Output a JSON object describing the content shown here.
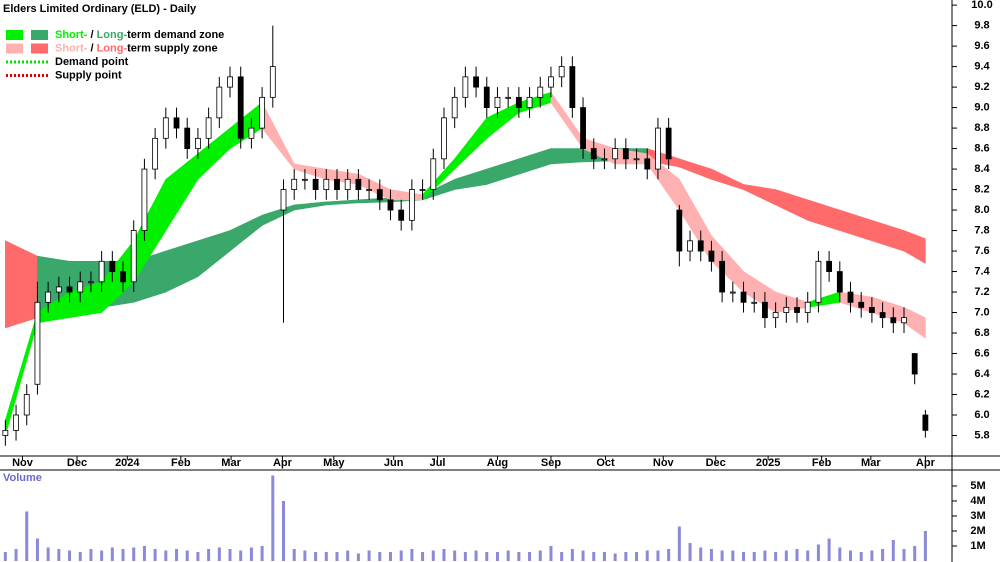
{
  "chart_data": {
    "type": "candlestick",
    "title": "Elders Limited Ordinary (ELD) - Daily",
    "xlim": [
      -0.5,
      88.3
    ],
    "xticks": [
      {
        "value": 1.6,
        "label": "Nov"
      },
      {
        "value": 6.7,
        "label": "Dec"
      },
      {
        "value": 11.4,
        "label": "2024"
      },
      {
        "value": 16.4,
        "label": "Feb"
      },
      {
        "value": 21.1,
        "label": "Mar"
      },
      {
        "value": 25.9,
        "label": "Apr"
      },
      {
        "value": 30.7,
        "label": "May"
      },
      {
        "value": 36.3,
        "label": "Jun"
      },
      {
        "value": 40.4,
        "label": "Jul"
      },
      {
        "value": 46.0,
        "label": "Aug"
      },
      {
        "value": 51.0,
        "label": "Sep"
      },
      {
        "value": 56.1,
        "label": "Oct"
      },
      {
        "value": 61.5,
        "label": "Nov"
      },
      {
        "value": 66.4,
        "label": "Dec"
      },
      {
        "value": 71.3,
        "label": "2025"
      },
      {
        "value": 76.3,
        "label": "Feb"
      },
      {
        "value": 80.9,
        "label": "Mar"
      },
      {
        "value": 86.0,
        "label": "Apr"
      }
    ],
    "ylim": [
      5.6,
      10.05
    ],
    "yticks": [
      5.8,
      {
        "value": 6,
        "label": "6.0"
      },
      6.2,
      6.4,
      6.6,
      6.8,
      {
        "value": 7,
        "label": "7.0"
      },
      7.2,
      7.4,
      7.6,
      7.8,
      {
        "value": 8,
        "label": "8.0"
      },
      8.2,
      8.4,
      8.6,
      8.8,
      {
        "value": 9,
        "label": "9.0"
      },
      9.2,
      9.4,
      9.6,
      9.8,
      {
        "value": 10,
        "label": "10.0"
      }
    ],
    "open": [
      5.8,
      5.85,
      6.0,
      6.3,
      7.1,
      7.2,
      7.25,
      7.2,
      7.3,
      7.3,
      7.5,
      7.4,
      7.3,
      7.8,
      8.4,
      8.7,
      8.9,
      8.8,
      8.6,
      8.7,
      8.9,
      9.2,
      9.3,
      8.7,
      8.8,
      9.1,
      8.0,
      8.2,
      8.3,
      8.3,
      8.2,
      8.3,
      8.2,
      8.3,
      8.2,
      8.2,
      8.1,
      8.0,
      7.9,
      8.2,
      8.2,
      8.5,
      8.9,
      9.1,
      9.3,
      9.2,
      9.0,
      9.1,
      9.1,
      9.0,
      9.1,
      9.2,
      9.3,
      9.4,
      9.0,
      8.6,
      8.5,
      8.5,
      8.6,
      8.5,
      8.5,
      8.4,
      8.8,
      8.0,
      7.6,
      7.7,
      7.6,
      7.5,
      7.2,
      7.2,
      7.1,
      7.1,
      6.95,
      7.0,
      7.05,
      7.0,
      7.1,
      7.5,
      7.4,
      7.2,
      7.1,
      7.05,
      7.0,
      6.95,
      6.9,
      6.6,
      6.0
    ],
    "high": [
      5.95,
      6.1,
      6.3,
      7.3,
      7.3,
      7.35,
      7.35,
      7.4,
      7.4,
      7.6,
      7.6,
      7.5,
      7.9,
      8.5,
      8.8,
      9.0,
      9.0,
      8.9,
      8.8,
      9.0,
      9.3,
      9.4,
      9.4,
      8.9,
      9.2,
      9.8,
      8.3,
      8.4,
      8.4,
      8.4,
      8.4,
      8.4,
      8.4,
      8.4,
      8.3,
      8.3,
      8.2,
      8.1,
      8.3,
      8.3,
      8.6,
      9.0,
      9.2,
      9.4,
      9.4,
      9.3,
      9.2,
      9.2,
      9.2,
      9.2,
      9.3,
      9.4,
      9.5,
      9.5,
      9.1,
      8.7,
      8.6,
      8.7,
      8.7,
      8.6,
      8.6,
      8.9,
      8.9,
      8.05,
      7.8,
      7.8,
      7.7,
      7.6,
      7.3,
      7.3,
      7.2,
      7.2,
      7.1,
      7.15,
      7.15,
      7.2,
      7.6,
      7.6,
      7.5,
      7.3,
      7.2,
      7.15,
      7.1,
      7.05,
      7.05,
      6.6,
      6.05
    ],
    "low": [
      5.7,
      5.75,
      5.9,
      6.2,
      7.0,
      7.1,
      7.1,
      7.1,
      7.2,
      7.2,
      7.3,
      7.2,
      7.2,
      7.7,
      8.3,
      8.6,
      8.7,
      8.5,
      8.5,
      8.6,
      8.8,
      9.1,
      8.6,
      8.6,
      8.7,
      9.0,
      6.9,
      8.1,
      8.2,
      8.1,
      8.1,
      8.1,
      8.1,
      8.1,
      8.1,
      8.0,
      7.9,
      7.8,
      7.8,
      8.1,
      8.1,
      8.4,
      8.8,
      9.0,
      9.1,
      8.9,
      8.9,
      9.0,
      8.9,
      8.9,
      9.0,
      9.1,
      9.2,
      8.9,
      8.5,
      8.4,
      8.4,
      8.4,
      8.4,
      8.4,
      8.3,
      8.3,
      8.4,
      7.45,
      7.5,
      7.5,
      7.4,
      7.1,
      7.1,
      7.0,
      7.0,
      6.85,
      6.85,
      6.9,
      6.9,
      6.9,
      7.0,
      7.3,
      7.1,
      7.0,
      6.95,
      6.9,
      6.85,
      6.8,
      6.8,
      6.3,
      5.78
    ],
    "close": [
      5.85,
      6.0,
      6.2,
      7.1,
      7.2,
      7.25,
      7.2,
      7.3,
      7.3,
      7.5,
      7.4,
      7.3,
      7.8,
      8.4,
      8.7,
      8.9,
      8.8,
      8.6,
      8.7,
      8.9,
      9.2,
      9.3,
      8.7,
      8.8,
      9.1,
      9.4,
      8.2,
      8.3,
      8.3,
      8.2,
      8.3,
      8.2,
      8.3,
      8.2,
      8.2,
      8.1,
      8.0,
      7.9,
      8.2,
      8.2,
      8.5,
      8.9,
      9.1,
      9.3,
      9.2,
      9.0,
      9.1,
      9.1,
      9.0,
      9.1,
      9.2,
      9.3,
      9.4,
      9.0,
      8.6,
      8.5,
      8.5,
      8.6,
      8.5,
      8.5,
      8.4,
      8.8,
      8.5,
      7.6,
      7.7,
      7.6,
      7.5,
      7.2,
      7.2,
      7.1,
      7.1,
      6.95,
      7.0,
      7.05,
      7.0,
      7.1,
      7.5,
      7.4,
      7.2,
      7.1,
      7.05,
      7.0,
      6.95,
      6.9,
      6.95,
      6.4,
      5.85
    ],
    "bands": [
      {
        "x": [
          0,
          3,
          6,
          9,
          12,
          15,
          18,
          21,
          24,
          27,
          30,
          33,
          36,
          39,
          42,
          45,
          48,
          51,
          54,
          57,
          60,
          63,
          66,
          69,
          72,
          75,
          78,
          81,
          84,
          86
        ],
        "upper": [
          7.7,
          7.55,
          7.5,
          7.5,
          7.5,
          7.6,
          7.7,
          7.8,
          7.95,
          8.05,
          8.08,
          8.1,
          8.12,
          8.15,
          8.3,
          8.4,
          8.5,
          8.6,
          8.6,
          8.6,
          8.6,
          8.5,
          8.4,
          8.25,
          8.2,
          8.1,
          8.0,
          7.9,
          7.8,
          7.72
        ],
        "lower": [
          6.85,
          6.95,
          7.05,
          7.05,
          7.1,
          7.2,
          7.35,
          7.6,
          7.85,
          8.0,
          8.05,
          8.07,
          8.08,
          8.1,
          8.2,
          8.25,
          8.35,
          8.45,
          8.47,
          8.48,
          8.48,
          8.42,
          8.3,
          8.2,
          8.05,
          7.9,
          7.8,
          7.7,
          7.6,
          7.48
        ],
        "demand_color": "#3aa86b",
        "supply_color": "#ff6a6a"
      },
      {
        "x": [
          0,
          3,
          6,
          9,
          12,
          15,
          18,
          21,
          24,
          27,
          30,
          33,
          36,
          39,
          42,
          45,
          48,
          51,
          54,
          57,
          60,
          63,
          66,
          69,
          72,
          75,
          78,
          81,
          84,
          86
        ],
        "upper": [
          5.95,
          7.0,
          7.2,
          7.3,
          7.7,
          8.3,
          8.55,
          8.8,
          9.05,
          8.45,
          8.4,
          8.35,
          8.2,
          8.15,
          8.5,
          8.9,
          9.05,
          9.15,
          8.7,
          8.6,
          8.55,
          8.3,
          7.75,
          7.4,
          7.2,
          7.1,
          7.2,
          7.15,
          7.05,
          6.95
        ],
        "lower": [
          5.8,
          6.9,
          6.95,
          7.0,
          7.3,
          7.8,
          8.3,
          8.6,
          8.8,
          8.4,
          8.3,
          8.25,
          8.1,
          8.1,
          8.4,
          8.7,
          8.95,
          9.05,
          8.6,
          8.45,
          8.45,
          8.0,
          7.5,
          7.2,
          7.0,
          7.05,
          7.1,
          7.0,
          6.9,
          6.75
        ],
        "demand_color": "#00f000",
        "supply_color": "#ffb0b0"
      }
    ],
    "legend": [
      {
        "parts": [
          "Short-",
          " / ",
          "Long-",
          "term demand zone"
        ],
        "colors": [
          "#00f000",
          "#3aa86b"
        ]
      },
      {
        "parts": [
          "Short-",
          " / ",
          "Long-",
          "term supply zone"
        ],
        "colors": [
          "#ffb0b0",
          "#ff6a6a"
        ]
      },
      {
        "label": "Demand point",
        "color": "#00dd00"
      },
      {
        "label": "Supply point",
        "color": "#dd0000"
      }
    ],
    "volume": {
      "label": "Volume",
      "color": "#8a8ad8",
      "ylim": [
        0,
        5.93
      ],
      "yticks": [
        {
          "value": 1,
          "label": "1M"
        },
        {
          "value": 2,
          "label": "2M"
        },
        {
          "value": 3,
          "label": "3M"
        },
        {
          "value": 4,
          "label": "4M"
        },
        {
          "value": 5,
          "label": "5M"
        }
      ],
      "values": [
        0.6,
        0.8,
        3.3,
        1.5,
        0.9,
        0.8,
        0.7,
        0.6,
        0.8,
        0.7,
        0.9,
        0.8,
        0.9,
        1.0,
        0.8,
        0.7,
        0.8,
        0.7,
        0.6,
        0.8,
        0.9,
        0.8,
        0.7,
        0.9,
        1.0,
        5.7,
        4.0,
        0.8,
        0.7,
        0.6,
        0.6,
        0.6,
        0.7,
        0.5,
        0.7,
        0.6,
        0.6,
        0.7,
        0.8,
        0.6,
        0.7,
        0.8,
        0.7,
        0.6,
        0.7,
        0.6,
        0.6,
        0.7,
        0.6,
        0.6,
        0.7,
        1.0,
        0.6,
        0.8,
        0.7,
        0.6,
        0.6,
        0.5,
        0.6,
        0.6,
        0.7,
        0.7,
        0.8,
        2.3,
        1.2,
        0.9,
        0.8,
        0.7,
        0.7,
        0.6,
        0.6,
        0.7,
        0.6,
        0.7,
        0.8,
        0.7,
        1.1,
        1.5,
        0.9,
        0.7,
        0.6,
        0.7,
        0.8,
        1.4,
        0.8,
        1.0,
        2.0
      ]
    }
  }
}
